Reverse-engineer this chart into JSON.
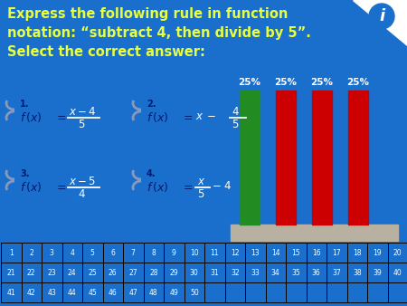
{
  "background_color": "#1a6fcc",
  "title_lines": [
    "Express the following rule in function",
    "notation: “subtract 4, then divide by 5”.",
    "Select the correct answer:"
  ],
  "title_fontsize": 10.5,
  "title_color": "#e8ff40",
  "bar_values": [
    25,
    25,
    25,
    25
  ],
  "bar_colors": [
    "#228B22",
    "#cc0000",
    "#cc0000",
    "#cc0000"
  ],
  "bar_labels": [
    "25%",
    "25%",
    "25%",
    "25%"
  ],
  "bar_label_color": "white",
  "bar_label_fontsize": 7.5,
  "platform_color": "#b8b0a0",
  "table_text_color": "white",
  "table_text_fontsize": 5.5,
  "formula_text_color": "white",
  "formula_number_color": "#1a3a88",
  "formula_fx_color": "#001a6e",
  "curly_color": "#8899bb",
  "num_label_color": "#001a6e",
  "icon_bg": "white",
  "icon_color": "#1a6fcc"
}
